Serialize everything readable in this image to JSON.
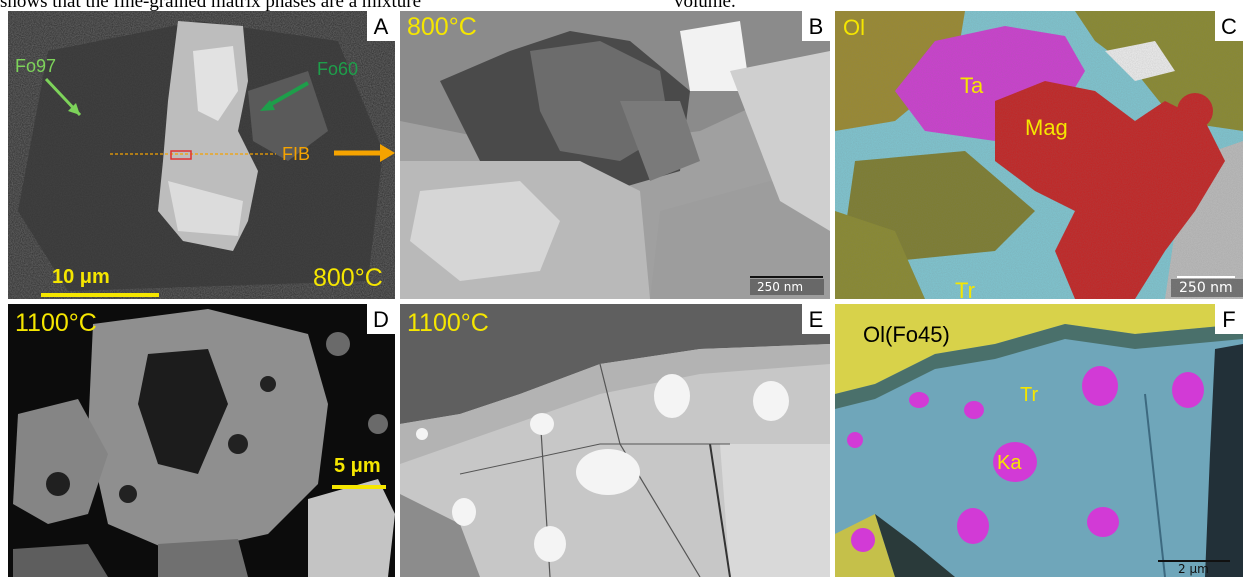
{
  "caption": {
    "left": "shows that the fine-grained matrix phases are a mixture",
    "right": "volume."
  },
  "panels": {
    "a": {
      "letter": "A",
      "fo97": "Fo97",
      "fo60": "Fo60",
      "fib": "FIB",
      "scale": "10 μm",
      "temp": "800°C"
    },
    "b": {
      "letter": "B",
      "temp": "800°C",
      "scale": "250 nm"
    },
    "c": {
      "letter": "C",
      "ol": "Ol",
      "ta": "Ta",
      "mag": "Mag",
      "tr": "Tr",
      "scale": "250 nm"
    },
    "d": {
      "letter": "D",
      "temp": "1100°C",
      "scale": "5 μm"
    },
    "e": {
      "letter": "E",
      "temp": "1100°C"
    },
    "f": {
      "letter": "F",
      "ol": "Ol(Fo45)",
      "tr": "Tr",
      "ka": "Ka",
      "scale": "2 μm"
    }
  },
  "colors": {
    "label_yellow": "#f5e600",
    "arrow_green_light": "#7dd35a",
    "arrow_green_dark": "#1e9e4a",
    "arrow_orange": "#f5a300",
    "magenta": "#d23ad6",
    "red": "#c81e1e",
    "olive": "#8a8a2a",
    "cyan": "#7ecad6"
  }
}
